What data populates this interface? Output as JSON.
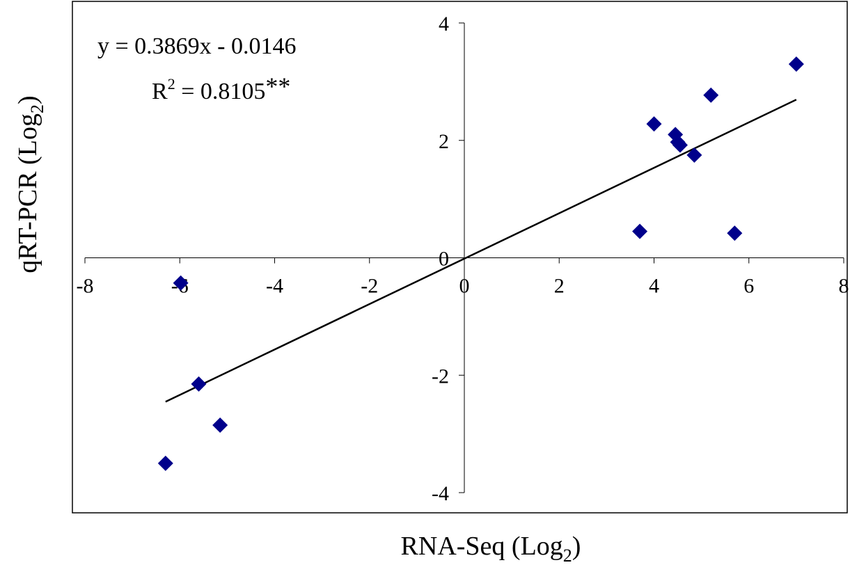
{
  "chart_data": {
    "type": "scatter",
    "title": "",
    "xlabel": {
      "main": "RNA-Seq (Log",
      "sub": "2",
      "tail": ")"
    },
    "ylabel": {
      "main": "qRT-PCR (Log",
      "sub": "2",
      "tail": ")"
    },
    "xlim": [
      -8,
      8
    ],
    "ylim": [
      -4,
      4
    ],
    "xticks": [
      -8,
      -6,
      -4,
      -2,
      0,
      2,
      4,
      6,
      8
    ],
    "yticks": [
      -4,
      -2,
      0,
      2,
      4
    ],
    "xtick_labels": [
      "-8",
      "-6",
      "-4",
      "-2",
      "0",
      "2",
      "4",
      "6",
      "8"
    ],
    "ytick_labels": [
      "-4",
      "-2",
      "0",
      "2",
      "4"
    ],
    "grid": false,
    "legend": "none",
    "marker": "diamond",
    "marker_color": "#00008B",
    "series": [
      {
        "points": [
          {
            "x": -6.3,
            "y": -3.5
          },
          {
            "x": -5.98,
            "y": -0.43
          },
          {
            "x": -5.6,
            "y": -2.15
          },
          {
            "x": -5.15,
            "y": -2.85
          },
          {
            "x": 3.7,
            "y": 0.45
          },
          {
            "x": 4.0,
            "y": 2.28
          },
          {
            "x": 4.45,
            "y": 2.1
          },
          {
            "x": 4.5,
            "y": 1.97
          },
          {
            "x": 4.55,
            "y": 1.92
          },
          {
            "x": 4.85,
            "y": 1.75
          },
          {
            "x": 5.2,
            "y": 2.77
          },
          {
            "x": 5.7,
            "y": 0.42
          },
          {
            "x": 7.0,
            "y": 3.3
          }
        ]
      }
    ],
    "trendline": {
      "slope": 0.3869,
      "intercept": -0.0146,
      "x_range": [
        -6.3,
        7.0
      ],
      "color": "#000000"
    },
    "annotations": {
      "equation": "y = 0.3869x - 0.0146",
      "r2_prefix": "R",
      "r2_exp": "2",
      "r2_value": " = 0.8105",
      "r2_sig": "**"
    }
  }
}
